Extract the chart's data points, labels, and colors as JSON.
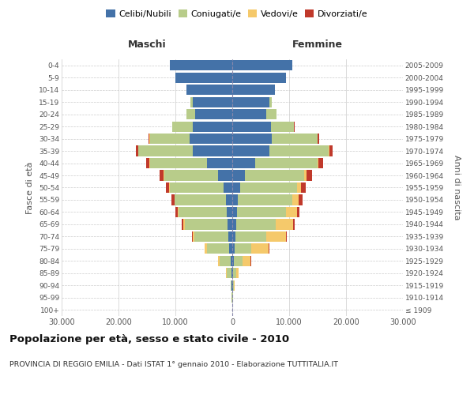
{
  "age_groups": [
    "100+",
    "95-99",
    "90-94",
    "85-89",
    "80-84",
    "75-79",
    "70-74",
    "65-69",
    "60-64",
    "55-59",
    "50-54",
    "45-49",
    "40-44",
    "35-39",
    "30-34",
    "25-29",
    "20-24",
    "15-19",
    "10-14",
    "5-9",
    "0-4"
  ],
  "birth_years": [
    "≤ 1909",
    "1910-1914",
    "1915-1919",
    "1920-1924",
    "1925-1929",
    "1930-1934",
    "1935-1939",
    "1940-1944",
    "1945-1949",
    "1950-1954",
    "1955-1959",
    "1960-1964",
    "1965-1969",
    "1970-1974",
    "1975-1979",
    "1980-1984",
    "1985-1989",
    "1990-1994",
    "1995-1999",
    "2000-2004",
    "2005-2009"
  ],
  "males": {
    "celibi": [
      20,
      50,
      100,
      150,
      250,
      500,
      700,
      900,
      1000,
      1100,
      1500,
      2500,
      4500,
      7000,
      7500,
      7000,
      6500,
      7000,
      8000,
      10000,
      11000
    ],
    "coniugati": [
      10,
      30,
      200,
      800,
      2000,
      4000,
      6000,
      7500,
      8500,
      9000,
      9500,
      9500,
      10000,
      9500,
      7000,
      3500,
      1500,
      300,
      50,
      10,
      5
    ],
    "vedovi": [
      2,
      5,
      30,
      100,
      200,
      300,
      300,
      250,
      150,
      100,
      80,
      60,
      50,
      30,
      15,
      5,
      2,
      1,
      0,
      0,
      0
    ],
    "divorziati": [
      1,
      3,
      10,
      20,
      30,
      50,
      100,
      200,
      350,
      500,
      600,
      700,
      600,
      400,
      200,
      80,
      20,
      5,
      1,
      0,
      0
    ]
  },
  "females": {
    "nubili": [
      20,
      50,
      100,
      150,
      250,
      400,
      500,
      700,
      900,
      1000,
      1400,
      2200,
      4000,
      6500,
      7000,
      6800,
      6000,
      6500,
      7500,
      9500,
      10500
    ],
    "coniugate": [
      10,
      30,
      150,
      500,
      1500,
      3000,
      5500,
      7000,
      8500,
      9500,
      10000,
      10500,
      11000,
      10500,
      8000,
      4000,
      1800,
      400,
      60,
      10,
      5
    ],
    "vedove": [
      5,
      20,
      100,
      500,
      1500,
      3000,
      3500,
      3000,
      2000,
      1200,
      700,
      400,
      200,
      100,
      40,
      15,
      5,
      1,
      0,
      0,
      0
    ],
    "divorziate": [
      1,
      3,
      10,
      20,
      30,
      60,
      120,
      250,
      450,
      650,
      800,
      900,
      800,
      550,
      300,
      100,
      25,
      5,
      1,
      0,
      0
    ]
  },
  "colors": {
    "celibi": "#4472a8",
    "coniugati": "#b8cc8a",
    "vedovi": "#f5c96b",
    "divorziati": "#c0392b"
  },
  "xlim": 30000,
  "title": "Popolazione per età, sesso e stato civile - 2010",
  "subtitle": "PROVINCIA DI REGGIO EMILIA - Dati ISTAT 1° gennaio 2010 - Elaborazione TUTTITALIA.IT",
  "ylabel_left": "Fasce di età",
  "ylabel_right": "Anni di nascita",
  "xlabel_left": "Maschi",
  "xlabel_right": "Femmine",
  "tick_labels": [
    "30.000",
    "20.000",
    "10.000",
    "0",
    "10.000",
    "20.000",
    "30.000"
  ],
  "background_color": "#ffffff",
  "grid_color": "#cccccc"
}
